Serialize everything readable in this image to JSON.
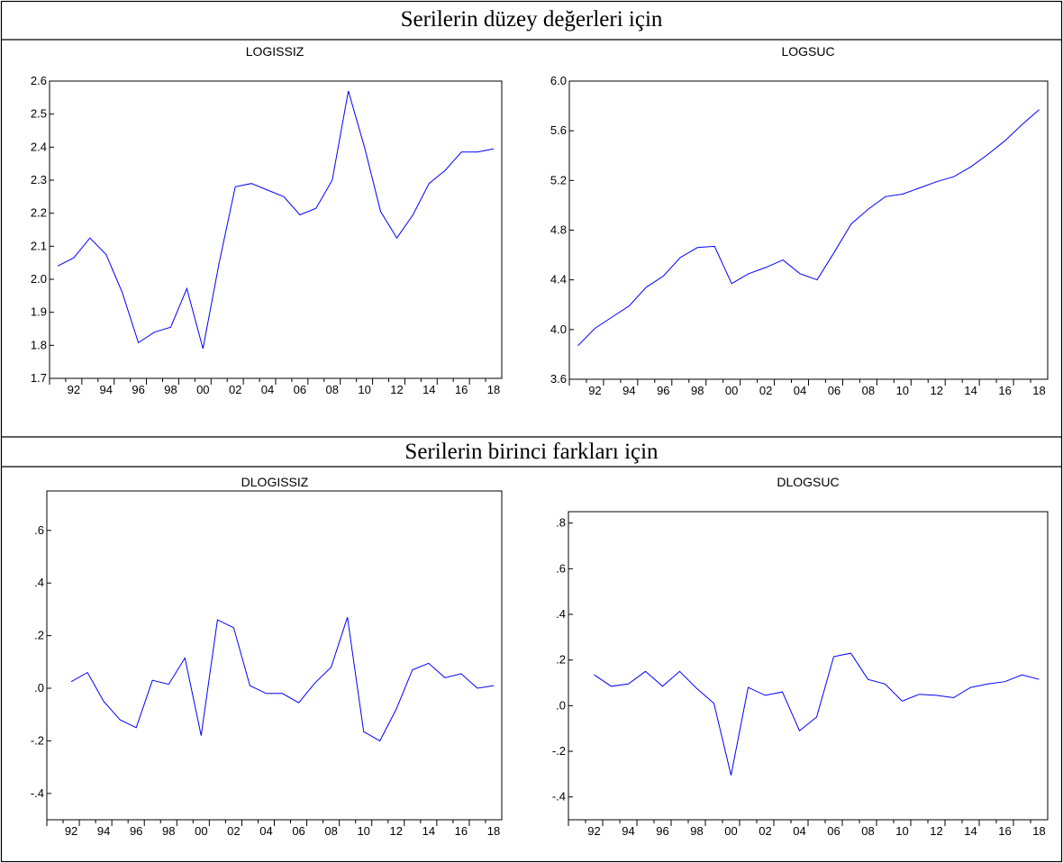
{
  "sections": [
    {
      "title": "Serilerin düzey değerleri için"
    },
    {
      "title": "Serilerin birinci farkları için"
    }
  ],
  "line_color": "#0000ff",
  "chart_data": [
    {
      "type": "line",
      "title": "LOGISSIZ",
      "x": [
        1991,
        1992,
        1993,
        1994,
        1995,
        1996,
        1997,
        1998,
        1999,
        2000,
        2001,
        2002,
        2003,
        2004,
        2005,
        2006,
        2007,
        2008,
        2009,
        2010,
        2011,
        2012,
        2013,
        2014,
        2015,
        2016,
        2017,
        2018
      ],
      "x_tick_labels": [
        "92",
        "94",
        "96",
        "98",
        "00",
        "02",
        "04",
        "06",
        "08",
        "10",
        "12",
        "14",
        "16",
        "18"
      ],
      "y_tick_labels": [
        "1.7",
        "1.8",
        "1.9",
        "2.0",
        "2.1",
        "2.2",
        "2.3",
        "2.4",
        "2.5",
        "2.6"
      ],
      "ylim": [
        1.7,
        2.6
      ],
      "values": [
        2.04,
        2.065,
        2.125,
        2.075,
        1.96,
        1.808,
        1.84,
        1.855,
        1.972,
        1.79,
        2.05,
        2.28,
        2.29,
        2.27,
        2.25,
        2.195,
        2.215,
        2.3,
        2.57,
        2.4,
        2.205,
        2.125,
        2.195,
        2.29,
        2.33,
        2.385,
        2.385,
        2.395
      ]
    },
    {
      "type": "line",
      "title": "LOGSUC",
      "x": [
        1991,
        1992,
        1993,
        1994,
        1995,
        1996,
        1997,
        1998,
        1999,
        2000,
        2001,
        2002,
        2003,
        2004,
        2005,
        2006,
        2007,
        2008,
        2009,
        2010,
        2011,
        2012,
        2013,
        2014,
        2015,
        2016,
        2017,
        2018
      ],
      "x_tick_labels": [
        "92",
        "94",
        "96",
        "98",
        "00",
        "02",
        "04",
        "06",
        "08",
        "10",
        "12",
        "14",
        "16",
        "18"
      ],
      "y_tick_labels": [
        "3.6",
        "4.0",
        "4.4",
        "4.8",
        "5.2",
        "5.6",
        "6.0"
      ],
      "ylim": [
        3.6,
        6.0
      ],
      "values": [
        3.87,
        4.01,
        4.1,
        4.19,
        4.34,
        4.43,
        4.58,
        4.66,
        4.67,
        4.37,
        4.45,
        4.5,
        4.56,
        4.45,
        4.4,
        4.62,
        4.85,
        4.97,
        5.07,
        5.09,
        5.14,
        5.19,
        5.23,
        5.31,
        5.41,
        5.52,
        5.65,
        5.77
      ]
    },
    {
      "type": "line",
      "title": "DLOGISSIZ",
      "x": [
        1992,
        1993,
        1994,
        1995,
        1996,
        1997,
        1998,
        1999,
        2000,
        2001,
        2002,
        2003,
        2004,
        2005,
        2006,
        2007,
        2008,
        2009,
        2010,
        2011,
        2012,
        2013,
        2014,
        2015,
        2016,
        2017,
        2018
      ],
      "x_tick_labels": [
        "92",
        "94",
        "96",
        "98",
        "00",
        "02",
        "04",
        "06",
        "08",
        "10",
        "12",
        "14",
        "16",
        "18"
      ],
      "y_tick_labels": [
        "-.4",
        "-.2",
        ".0",
        ".2",
        ".4",
        ".6"
      ],
      "ylim": [
        -0.5,
        0.75
      ],
      "values": [
        0.025,
        0.06,
        -0.05,
        -0.12,
        -0.15,
        0.03,
        0.015,
        0.115,
        -0.18,
        0.26,
        0.23,
        0.01,
        -0.02,
        -0.02,
        -0.055,
        0.02,
        0.08,
        0.27,
        -0.165,
        -0.2,
        -0.08,
        0.07,
        0.095,
        0.04,
        0.055,
        0.0,
        0.01
      ]
    },
    {
      "type": "line",
      "title": "DLOGSUC",
      "x": [
        1992,
        1993,
        1994,
        1995,
        1996,
        1997,
        1998,
        1999,
        2000,
        2001,
        2002,
        2003,
        2004,
        2005,
        2006,
        2007,
        2008,
        2009,
        2010,
        2011,
        2012,
        2013,
        2014,
        2015,
        2016,
        2017,
        2018
      ],
      "x_tick_labels": [
        "92",
        "94",
        "96",
        "98",
        "00",
        "02",
        "04",
        "06",
        "08",
        "10",
        "12",
        "14",
        "16",
        "18"
      ],
      "y_tick_labels": [
        "-.4",
        "-.2",
        ".0",
        ".2",
        ".4",
        ".6",
        ".8"
      ],
      "ylim": [
        -0.5,
        0.85
      ],
      "values": [
        0.135,
        0.085,
        0.095,
        0.15,
        0.085,
        0.15,
        0.075,
        0.01,
        -0.305,
        0.08,
        0.045,
        0.06,
        -0.11,
        -0.05,
        0.215,
        0.23,
        0.115,
        0.095,
        0.02,
        0.05,
        0.045,
        0.035,
        0.08,
        0.095,
        0.105,
        0.135,
        0.115
      ]
    }
  ]
}
